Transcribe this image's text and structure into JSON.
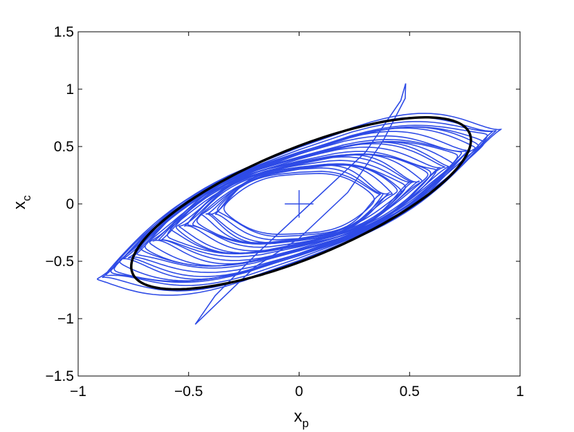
{
  "chart_data": {
    "type": "line",
    "title": "",
    "xlabel": {
      "base": "x",
      "subscript": "p"
    },
    "ylabel": {
      "base": "x",
      "subscript": "c"
    },
    "xlim": [
      -1,
      1
    ],
    "ylim": [
      -1.5,
      1.5
    ],
    "xticks": [
      -1,
      -0.5,
      0,
      0.5,
      1
    ],
    "xtick_labels": [
      "−1",
      "−0.5",
      "0",
      "0.5",
      "1"
    ],
    "yticks": [
      -1.5,
      -1,
      -0.5,
      0,
      0.5,
      1,
      1.5
    ],
    "ytick_labels": [
      "−1.5",
      "−1",
      "−0.5",
      "0",
      "0.5",
      "1",
      "1.5"
    ],
    "grid": false,
    "box": true,
    "series": [
      {
        "style": "closed-curve",
        "color": "#000000",
        "ellipse": {
          "center": [
            0.009,
            0.005
          ],
          "semi_axes": [
            1.0,
            0.39
          ],
          "angle_deg": 44
        }
      },
      {
        "style": "trajectory",
        "color": "#2e4be6",
        "loops": 30,
        "outer_extent": {
          "xp_max": 0.91,
          "xc_max": 1.05
        }
      }
    ],
    "annotations": [
      {
        "type": "plus-marker",
        "x": 0,
        "y": 0,
        "half_width": 0.065,
        "half_height": 0.12,
        "color": "#2e4be6"
      }
    ]
  }
}
